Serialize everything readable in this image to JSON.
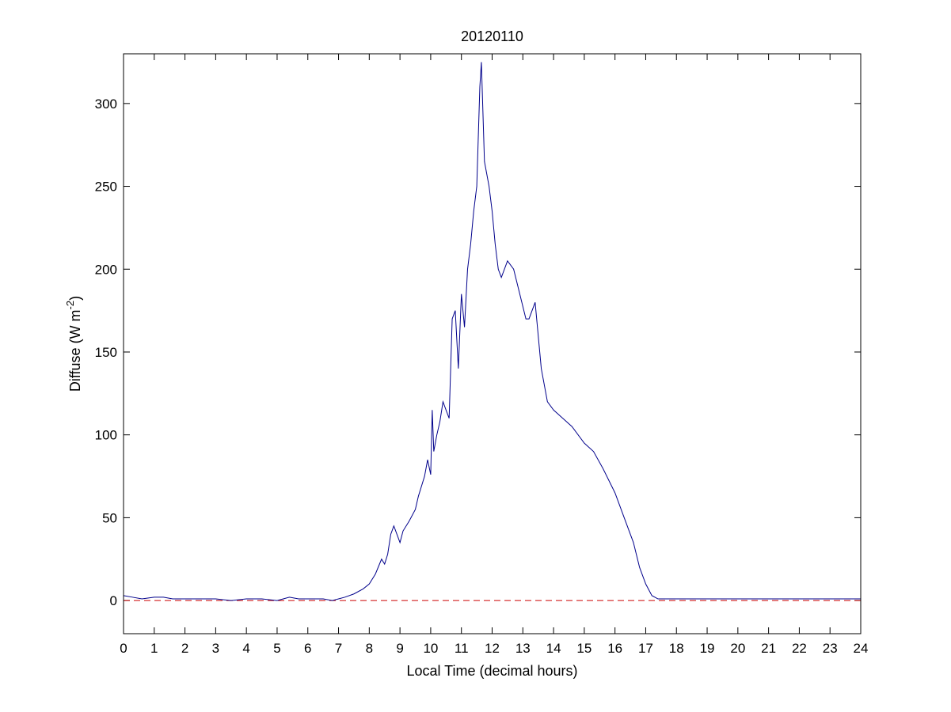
{
  "chart_data": {
    "type": "line",
    "title": "20120110",
    "xlabel": "Local Time (decimal hours)",
    "ylabel_main": "Diffuse (W m",
    "ylabel_sup": "-2",
    "ylabel_close": ")",
    "xlim": [
      0,
      24
    ],
    "ylim": [
      -20,
      330
    ],
    "xticks": [
      0,
      1,
      2,
      3,
      4,
      5,
      6,
      7,
      8,
      9,
      10,
      11,
      12,
      13,
      14,
      15,
      16,
      17,
      18,
      19,
      20,
      21,
      22,
      23,
      24
    ],
    "yticks": [
      0,
      50,
      100,
      150,
      200,
      250,
      300
    ],
    "grid": false,
    "reference_line": {
      "y": 0,
      "style": "dashed",
      "color": "#cc0000"
    },
    "series": [
      {
        "color": "#00008b",
        "x": [
          0,
          0.3,
          0.6,
          1.0,
          1.3,
          1.6,
          2.0,
          2.5,
          3.0,
          3.5,
          4.0,
          4.5,
          5.0,
          5.4,
          5.7,
          6.0,
          6.5,
          6.8,
          7.0,
          7.2,
          7.5,
          7.8,
          8.0,
          8.2,
          8.4,
          8.5,
          8.6,
          8.7,
          8.8,
          9.0,
          9.1,
          9.3,
          9.5,
          9.6,
          9.8,
          9.9,
          10.0,
          10.05,
          10.1,
          10.2,
          10.3,
          10.4,
          10.5,
          10.6,
          10.7,
          10.8,
          10.9,
          11.0,
          11.1,
          11.2,
          11.3,
          11.4,
          11.5,
          11.6,
          11.65,
          11.75,
          11.8,
          11.9,
          12.0,
          12.1,
          12.2,
          12.3,
          12.5,
          12.7,
          12.9,
          13.1,
          13.2,
          13.4,
          13.6,
          13.8,
          14.0,
          14.3,
          14.6,
          15.0,
          15.3,
          15.6,
          16.0,
          16.3,
          16.6,
          16.8,
          17.0,
          17.2,
          17.4,
          17.6,
          18.0,
          19.0,
          20.0,
          21.0,
          22.0,
          22.5,
          23.0,
          23.5,
          24.0
        ],
        "values": [
          3,
          2,
          1,
          2,
          2,
          1,
          1,
          1,
          1,
          0,
          1,
          1,
          0,
          2,
          1,
          1,
          1,
          0,
          1,
          2,
          4,
          7,
          10,
          16,
          25,
          22,
          28,
          40,
          45,
          35,
          42,
          48,
          55,
          63,
          75,
          85,
          76,
          115,
          90,
          100,
          108,
          120,
          115,
          110,
          170,
          175,
          140,
          185,
          165,
          200,
          215,
          235,
          250,
          310,
          325,
          265,
          260,
          250,
          235,
          215,
          200,
          195,
          205,
          200,
          185,
          170,
          170,
          180,
          140,
          120,
          115,
          110,
          105,
          95,
          90,
          80,
          65,
          50,
          35,
          20,
          10,
          3,
          1,
          1,
          1,
          1,
          1,
          1,
          1,
          1,
          1,
          1,
          1
        ]
      }
    ]
  }
}
